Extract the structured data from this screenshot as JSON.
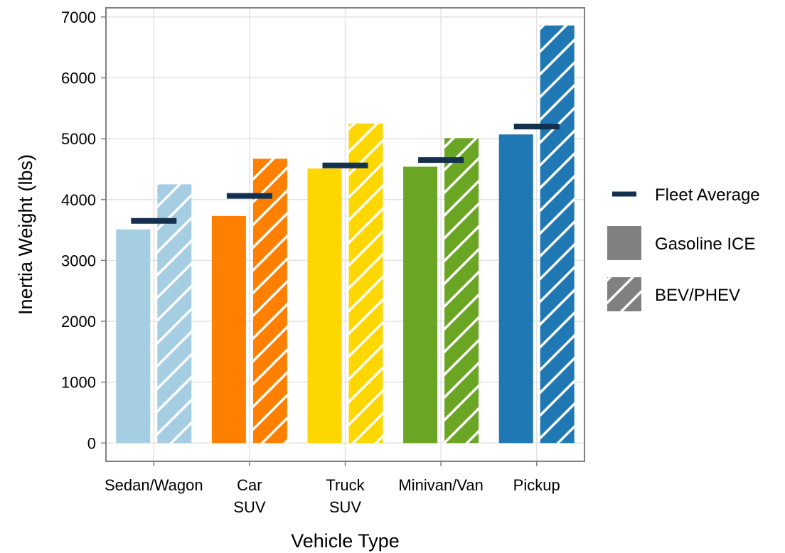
{
  "chart_data": {
    "type": "bar",
    "xlabel": "Vehicle Type",
    "ylabel": "Inertia Weight (lbs)",
    "ylim": [
      -300,
      7150
    ],
    "yticks": [
      0,
      1000,
      2000,
      3000,
      4000,
      5000,
      6000,
      7000
    ],
    "grid": true,
    "legend_position": "right",
    "categories": [
      {
        "label_lines": [
          "Sedan/Wagon"
        ],
        "color": "#a6cee3"
      },
      {
        "label_lines": [
          "Car",
          "SUV"
        ],
        "color": "#ff7f00"
      },
      {
        "label_lines": [
          "Truck",
          "SUV"
        ],
        "color": "#ffd700"
      },
      {
        "label_lines": [
          "Minivan/Van"
        ],
        "color": "#6aa623"
      },
      {
        "label_lines": [
          "Pickup"
        ],
        "color": "#1f78b4"
      }
    ],
    "series": [
      {
        "name": "Gasoline ICE",
        "pattern": "solid",
        "values": [
          3510,
          3730,
          4510,
          4540,
          5070
        ]
      },
      {
        "name": "BEV/PHEV",
        "pattern": "hatch",
        "values": [
          4250,
          4670,
          5250,
          5010,
          6860
        ]
      }
    ],
    "fleet_average": {
      "name": "Fleet Average",
      "color": "#13304f",
      "values": [
        3650,
        4060,
        4560,
        4650,
        5200
      ]
    },
    "legend": [
      {
        "label": "Fleet Average",
        "kind": "line",
        "color": "#13304f"
      },
      {
        "label": "Gasoline ICE",
        "kind": "solid",
        "color": "#808080"
      },
      {
        "label": "BEV/PHEV",
        "kind": "hatch",
        "color": "#808080"
      }
    ]
  }
}
